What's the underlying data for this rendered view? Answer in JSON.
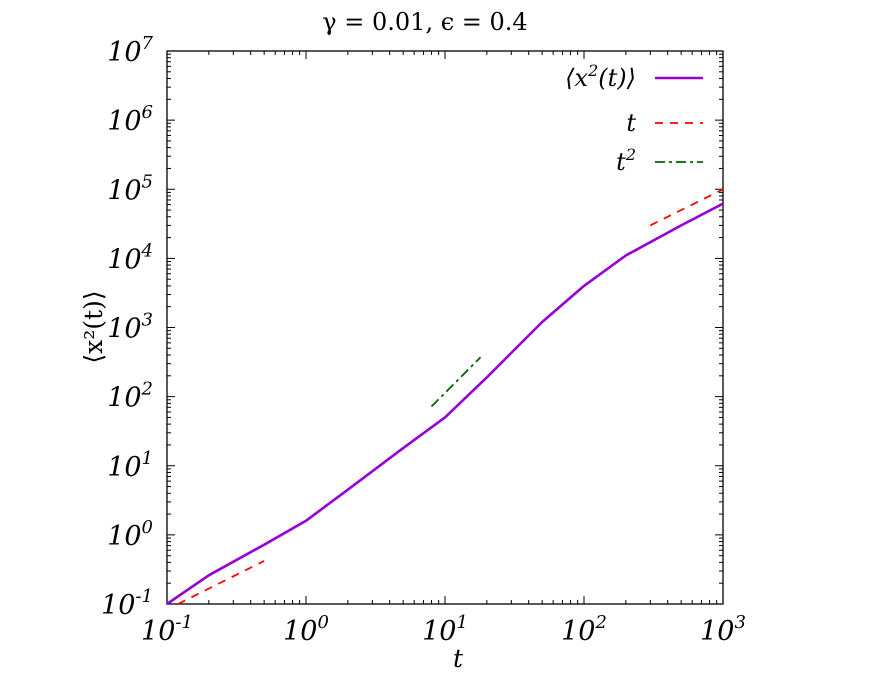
{
  "chart_data": {
    "type": "line",
    "title": "γ = 0.01, ϵ = 0.4",
    "xlabel": "t",
    "ylabel": "⟨x²(t)⟩",
    "xscale": "log",
    "yscale": "log",
    "xlim": [
      0.1,
      1000
    ],
    "ylim": [
      0.1,
      10000000
    ],
    "grid": false,
    "legend_position": "top-right",
    "x_ticks": [
      {
        "value": 0.1,
        "base": "10",
        "exp": "-1"
      },
      {
        "value": 1,
        "base": "10",
        "exp": "0"
      },
      {
        "value": 10,
        "base": "10",
        "exp": "1"
      },
      {
        "value": 100,
        "base": "10",
        "exp": "2"
      },
      {
        "value": 1000,
        "base": "10",
        "exp": "3"
      }
    ],
    "y_ticks": [
      {
        "value": 0.1,
        "base": "10",
        "exp": "-1"
      },
      {
        "value": 1,
        "base": "10",
        "exp": "0"
      },
      {
        "value": 10,
        "base": "10",
        "exp": "1"
      },
      {
        "value": 100,
        "base": "10",
        "exp": "2"
      },
      {
        "value": 1000,
        "base": "10",
        "exp": "3"
      },
      {
        "value": 10000,
        "base": "10",
        "exp": "4"
      },
      {
        "value": 100000,
        "base": "10",
        "exp": "5"
      },
      {
        "value": 1000000,
        "base": "10",
        "exp": "6"
      },
      {
        "value": 10000000,
        "base": "10",
        "exp": "7"
      }
    ],
    "series": [
      {
        "name": "⟨x²(t)⟩",
        "style": "solid",
        "color": "#9400d3",
        "x": [
          0.1,
          0.2,
          0.5,
          1,
          2,
          5,
          10,
          20,
          50,
          100,
          200,
          500,
          1000
        ],
        "y": [
          0.1,
          0.26,
          0.72,
          1.6,
          4.5,
          18,
          50,
          190,
          1200,
          4000,
          11000,
          30000,
          62000
        ]
      },
      {
        "name": "t",
        "style": "dashed",
        "color": "#ff0000",
        "segments": [
          {
            "x": [
              0.12,
              0.5
            ],
            "y": [
              0.1,
              0.42
            ]
          },
          {
            "x": [
              300,
              1000
            ],
            "y": [
              30000,
              100000
            ]
          }
        ]
      },
      {
        "name": "t²",
        "style": "dash-dot",
        "color": "#006400",
        "segments": [
          {
            "x": [
              8,
              18
            ],
            "y": [
              72,
              370
            ]
          }
        ]
      }
    ],
    "legend": [
      {
        "main": "⟨x",
        "sup": "2",
        "rest": "(t)⟩"
      },
      {
        "main": "t",
        "sup": "",
        "rest": ""
      },
      {
        "main": "t",
        "sup": "2",
        "rest": ""
      }
    ]
  }
}
